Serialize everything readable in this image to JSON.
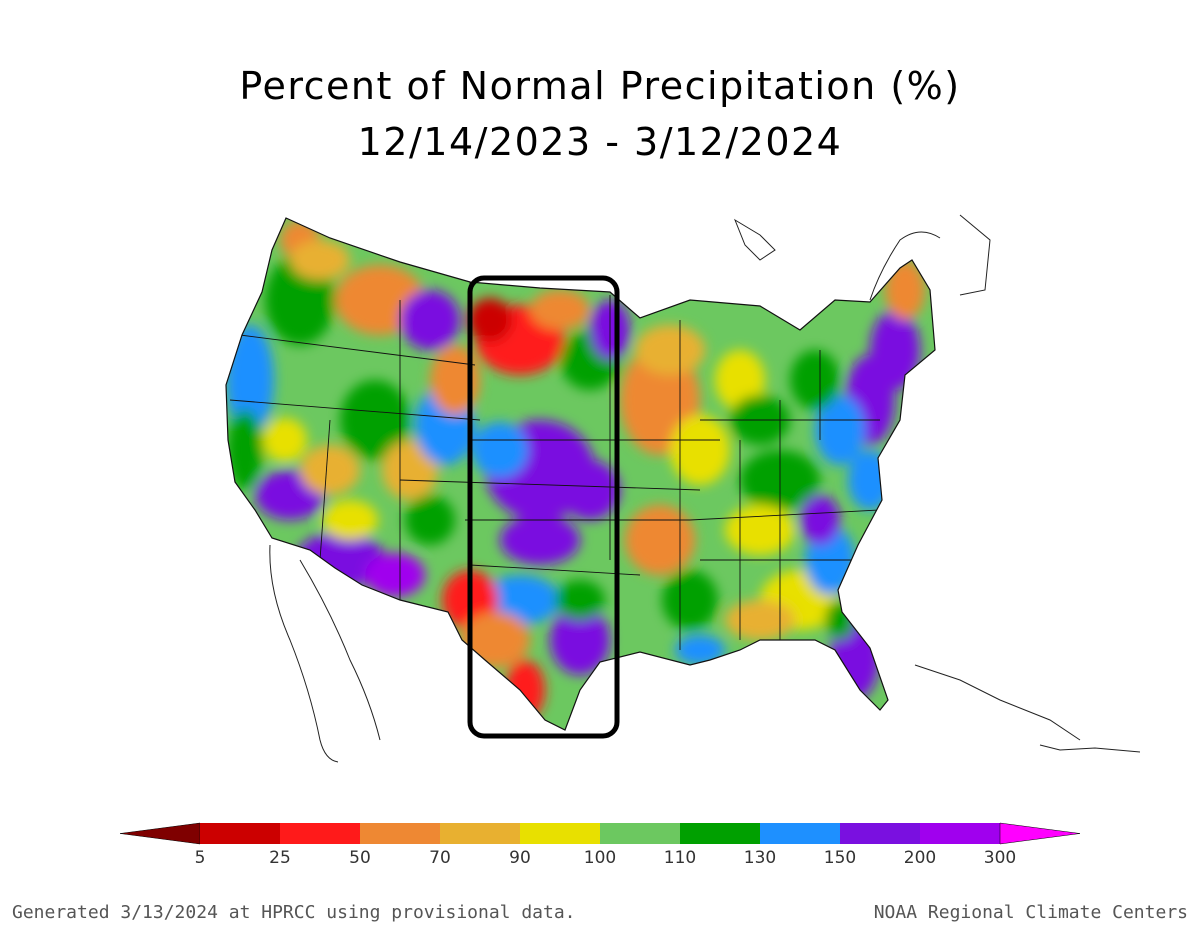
{
  "title": {
    "line1": "Percent of Normal Precipitation (%)",
    "line2": "12/14/2023 - 3/12/2024"
  },
  "legend": {
    "bins": [
      {
        "label": "5",
        "color": "#7f0000"
      },
      {
        "label": "25",
        "color": "#cc0000"
      },
      {
        "label": "50",
        "color": "#ff1a1a"
      },
      {
        "label": "70",
        "color": "#ee8833"
      },
      {
        "label": "90",
        "color": "#e8b030"
      },
      {
        "label": "100",
        "color": "#e8e000"
      },
      {
        "label": "110",
        "color": "#6cc860"
      },
      {
        "label": "130",
        "color": "#00a000"
      },
      {
        "label": "150",
        "color": "#1e90ff"
      },
      {
        "label": "200",
        "color": "#7a10e0"
      },
      {
        "label": "300",
        "color": "#a000ee"
      }
    ],
    "over_color": "#ff00ff",
    "under_color": "#7f0000"
  },
  "footer": {
    "left": "Generated 3/13/2024 at HPRCC using provisional data.",
    "right": "NOAA Regional Climate Centers"
  }
}
